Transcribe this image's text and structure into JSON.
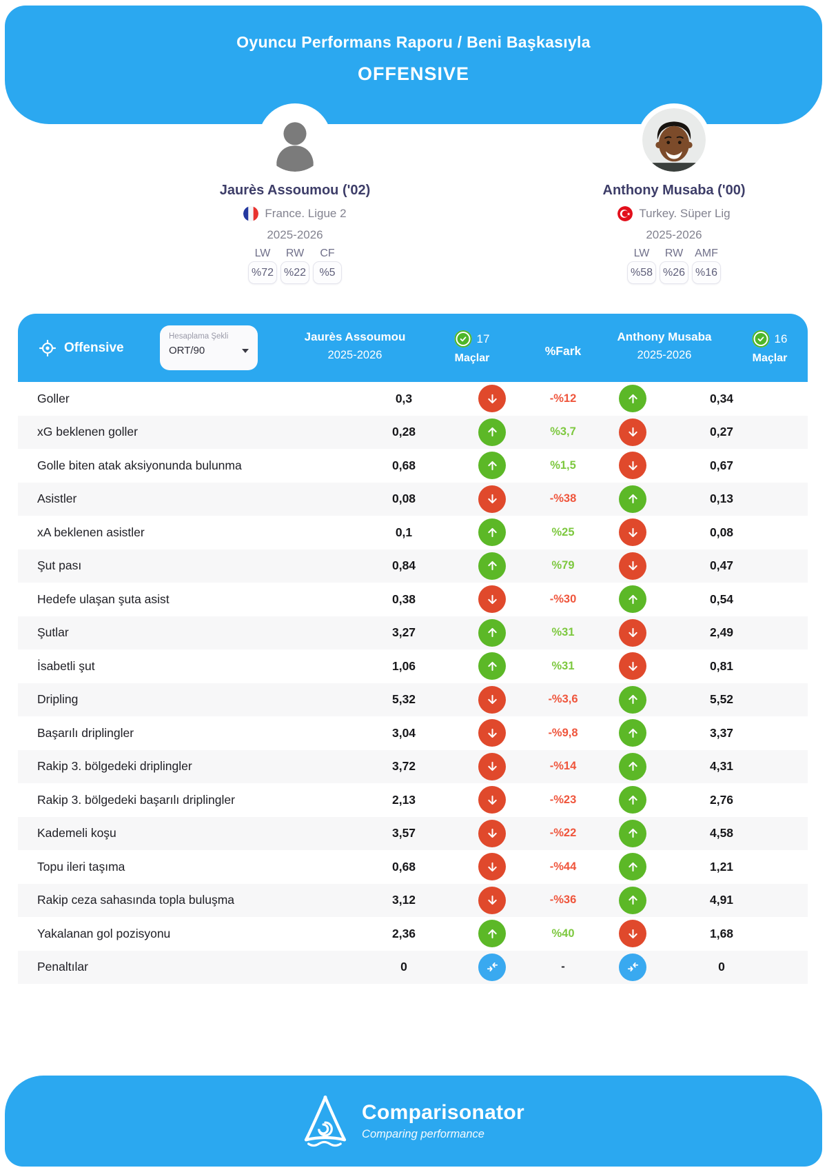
{
  "hero": {
    "title_line1": "Oyuncu Performans Raporu / Beni Başkasıyla",
    "title_line2": "OFFENSIVE"
  },
  "players": [
    {
      "name": "Jaurès Assoumou ('02)",
      "flag": "france-flag",
      "league": "France. Ligue 2",
      "season": "2025-2026",
      "positions": [
        {
          "label": "LW",
          "value": "%72"
        },
        {
          "label": "RW",
          "value": "%22"
        },
        {
          "label": "CF",
          "value": "%5"
        }
      ]
    },
    {
      "name": "Anthony Musaba ('00)",
      "flag": "turkey-flag",
      "league": "Turkey. Süper Lig",
      "season": "2025-2026",
      "positions": [
        {
          "label": "LW",
          "value": "%58"
        },
        {
          "label": "RW",
          "value": "%26"
        },
        {
          "label": "AMF",
          "value": "%16"
        }
      ]
    }
  ],
  "table": {
    "section_label": "Offensive",
    "dropdown": {
      "label": "Hesaplama Şekli",
      "value": "ORT/90"
    },
    "player1": {
      "name": "Jaurès Assoumou",
      "season": "2025-2026",
      "matches": "17",
      "matches_label": "Maçlar"
    },
    "diff_label": "%Fark",
    "player2": {
      "name": "Anthony Musaba",
      "season": "2025-2026",
      "matches": "16",
      "matches_label": "Maçlar"
    },
    "rows": [
      {
        "stat": "Goller",
        "v1": "0,3",
        "dir1": "down",
        "diff": "-%12",
        "diff_type": "neg",
        "dir2": "up",
        "v2": "0,34"
      },
      {
        "stat": "xG beklenen goller",
        "v1": "0,28",
        "dir1": "up",
        "diff": "%3,7",
        "diff_type": "pos",
        "dir2": "down",
        "v2": "0,27"
      },
      {
        "stat": "Golle biten atak aksiyonunda bulunma",
        "v1": "0,68",
        "dir1": "up",
        "diff": "%1,5",
        "diff_type": "pos",
        "dir2": "down",
        "v2": "0,67"
      },
      {
        "stat": "Asistler",
        "v1": "0,08",
        "dir1": "down",
        "diff": "-%38",
        "diff_type": "neg",
        "dir2": "up",
        "v2": "0,13"
      },
      {
        "stat": "xA beklenen asistler",
        "v1": "0,1",
        "dir1": "up",
        "diff": "%25",
        "diff_type": "pos",
        "dir2": "down",
        "v2": "0,08"
      },
      {
        "stat": "Şut pası",
        "v1": "0,84",
        "dir1": "up",
        "diff": "%79",
        "diff_type": "pos",
        "dir2": "down",
        "v2": "0,47"
      },
      {
        "stat": "Hedefe ulaşan şuta asist",
        "v1": "0,38",
        "dir1": "down",
        "diff": "-%30",
        "diff_type": "neg",
        "dir2": "up",
        "v2": "0,54"
      },
      {
        "stat": "Şutlar",
        "v1": "3,27",
        "dir1": "up",
        "diff": "%31",
        "diff_type": "pos",
        "dir2": "down",
        "v2": "2,49"
      },
      {
        "stat": "İsabetli şut",
        "v1": "1,06",
        "dir1": "up",
        "diff": "%31",
        "diff_type": "pos",
        "dir2": "down",
        "v2": "0,81"
      },
      {
        "stat": "Dripling",
        "v1": "5,32",
        "dir1": "down",
        "diff": "-%3,6",
        "diff_type": "neg",
        "dir2": "up",
        "v2": "5,52"
      },
      {
        "stat": "Başarılı driplingler",
        "v1": "3,04",
        "dir1": "down",
        "diff": "-%9,8",
        "diff_type": "neg",
        "dir2": "up",
        "v2": "3,37"
      },
      {
        "stat": "Rakip 3. bölgedeki driplingler",
        "v1": "3,72",
        "dir1": "down",
        "diff": "-%14",
        "diff_type": "neg",
        "dir2": "up",
        "v2": "4,31"
      },
      {
        "stat": "Rakip 3. bölgedeki başarılı driplingler",
        "v1": "2,13",
        "dir1": "down",
        "diff": "-%23",
        "diff_type": "neg",
        "dir2": "up",
        "v2": "2,76"
      },
      {
        "stat": "Kademeli koşu",
        "v1": "3,57",
        "dir1": "down",
        "diff": "-%22",
        "diff_type": "neg",
        "dir2": "up",
        "v2": "4,58"
      },
      {
        "stat": "Topu ileri taşıma",
        "v1": "0,68",
        "dir1": "down",
        "diff": "-%44",
        "diff_type": "neg",
        "dir2": "up",
        "v2": "1,21"
      },
      {
        "stat": "Rakip ceza sahasında topla buluşma",
        "v1": "3,12",
        "dir1": "down",
        "diff": "-%36",
        "diff_type": "neg",
        "dir2": "up",
        "v2": "4,91"
      },
      {
        "stat": "Yakalanan gol pozisyonu",
        "v1": "2,36",
        "dir1": "up",
        "diff": "%40",
        "diff_type": "pos",
        "dir2": "down",
        "v2": "1,68"
      },
      {
        "stat": "Penaltılar",
        "v1": "0",
        "dir1": "eq",
        "diff": "-",
        "diff_type": "none",
        "dir2": "eq",
        "v2": "0"
      }
    ]
  },
  "footer": {
    "brand": "Comparisonator",
    "tagline": "Comparing performance"
  },
  "colors": {
    "accent_blue": "#2ba8f0",
    "positive_green": "#5cb827",
    "negative_red": "#e0492c",
    "diff_green_text": "#7dc83f",
    "diff_red_text": "#ef553c",
    "navy_name": "#3d3d68"
  }
}
